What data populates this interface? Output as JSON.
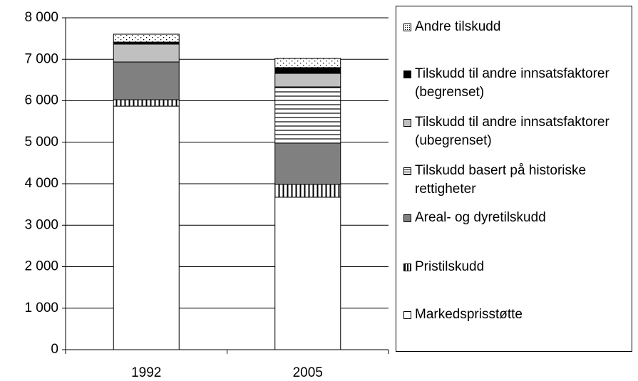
{
  "chart_data": {
    "type": "stacked_bar",
    "categories": [
      "1992",
      "2005"
    ],
    "series": [
      {
        "name": "Markedsprisstøtte",
        "color": "#ffffff",
        "pattern": "solid",
        "values": [
          5870,
          3675
        ]
      },
      {
        "name": "Pristilskudd",
        "color": "#ffffff",
        "pattern": "vertical",
        "values": [
          155,
          310
        ]
      },
      {
        "name": "Areal- og dyretilskudd",
        "color": "#808080",
        "pattern": "solid",
        "values": [
          910,
          995
        ]
      },
      {
        "name": "Tilskudd basert på historiske rettigheter",
        "color": "#ffffff",
        "pattern": "horizontal",
        "values": [
          0,
          1355
        ]
      },
      {
        "name": "Tilskudd til andre innsatsfaktorer (ubegrenset)",
        "color": "#c0c0c0",
        "pattern": "solid",
        "values": [
          430,
          325
        ]
      },
      {
        "name": "Tilskudd til andre innsatsfaktorer (begrenset)",
        "color": "#000000",
        "pattern": "solid",
        "values": [
          50,
          140
        ]
      },
      {
        "name": "Andre tilskudd",
        "color": "#ffffff",
        "pattern": "dots",
        "values": [
          190,
          220
        ]
      }
    ],
    "ylim": [
      0,
      8000
    ],
    "yticks": [
      0,
      {
        "value": 1000,
        "label": "1 000"
      },
      {
        "value": 2000,
        "label": "2 000"
      },
      {
        "value": 3000,
        "label": "3 000"
      },
      {
        "value": 4000,
        "label": "4 000"
      },
      {
        "value": 5000,
        "label": "5 000"
      },
      {
        "value": 6000,
        "label": "6 000"
      },
      {
        "value": 7000,
        "label": "7 000"
      },
      {
        "value": 8000,
        "label": "8 000"
      }
    ],
    "grid": true
  }
}
